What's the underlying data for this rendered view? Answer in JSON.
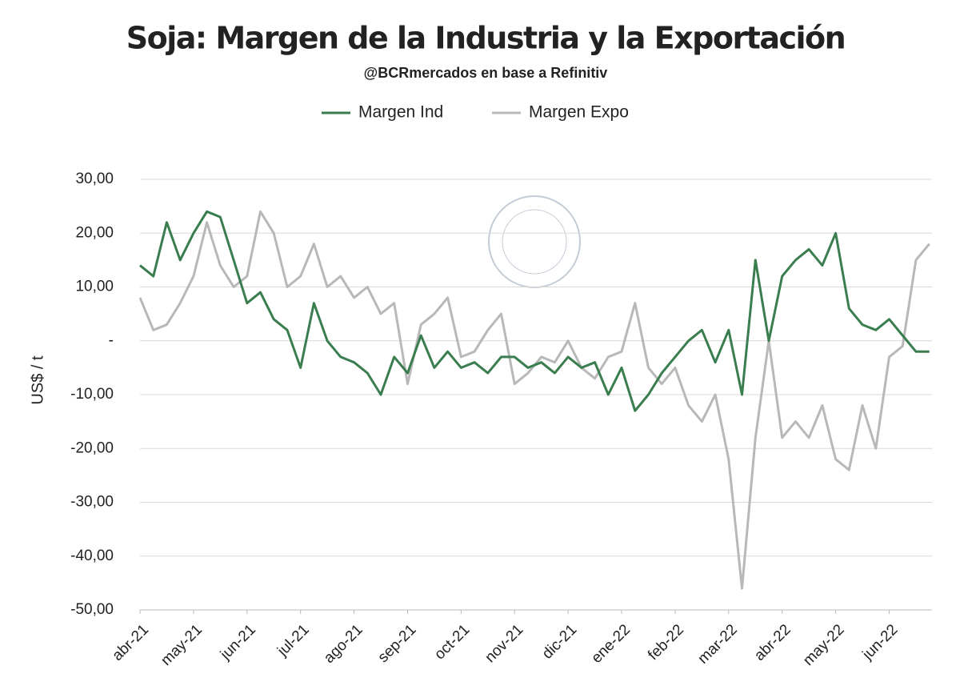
{
  "chart_data": {
    "type": "line",
    "title": "Soja: Margen de la Industria y la Exportación",
    "subtitle": "@BCRmercados  en base a Refinitiv",
    "y_label": "US$ / t",
    "x": [
      0,
      0.25,
      0.5,
      0.75,
      1,
      1.25,
      1.5,
      1.75,
      2,
      2.25,
      2.5,
      2.75,
      3,
      3.25,
      3.5,
      3.75,
      4,
      4.25,
      4.5,
      4.75,
      5,
      5.25,
      5.5,
      5.75,
      6,
      6.25,
      6.5,
      6.75,
      7,
      7.25,
      7.5,
      7.75,
      8,
      8.25,
      8.5,
      8.75,
      9,
      9.25,
      9.5,
      9.75,
      10,
      10.25,
      10.5,
      10.75,
      11,
      11.25,
      11.5,
      11.75,
      12,
      12.25,
      12.5,
      12.75,
      13,
      13.25,
      13.5,
      13.75,
      14,
      14.25,
      14.5,
      14.75
    ],
    "series": [
      {
        "name": "Margen Ind",
        "color": "#3a7d4f",
        "values": [
          14,
          12,
          22,
          15,
          20,
          24,
          23,
          15,
          7,
          9,
          4,
          2,
          -5,
          7,
          0,
          -3,
          -4,
          -6,
          -10,
          -3,
          -6,
          1,
          -5,
          -2,
          -5,
          -4,
          -6,
          -3,
          -3,
          -5,
          -4,
          -6,
          -3,
          -5,
          -4,
          -10,
          -5,
          -13,
          -10,
          -6,
          -3,
          0,
          2,
          -4,
          2,
          -10,
          15,
          0,
          12,
          15,
          17,
          14,
          20,
          6,
          3,
          2,
          4,
          1,
          -2,
          -2
        ]
      },
      {
        "name": "Margen Expo",
        "color": "#b8b8b8",
        "values": [
          8,
          2,
          3,
          7,
          12,
          22,
          14,
          10,
          12,
          24,
          20,
          10,
          12,
          18,
          10,
          12,
          8,
          10,
          5,
          7,
          -8,
          3,
          5,
          8,
          -3,
          -2,
          2,
          5,
          -8,
          -6,
          -3,
          -4,
          0,
          -5,
          -7,
          -3,
          -2,
          7,
          -5,
          -8,
          -5,
          -12,
          -15,
          -10,
          -22,
          -46,
          -18,
          0,
          -18,
          -15,
          -18,
          -12,
          -22,
          -24,
          -12,
          -20,
          -3,
          -1,
          15,
          18
        ]
      }
    ],
    "xlim": [
      0,
      14.8
    ],
    "xticks": [
      {
        "value": 0,
        "label": "abr-21"
      },
      {
        "value": 1,
        "label": "may-21"
      },
      {
        "value": 2,
        "label": "jun-21"
      },
      {
        "value": 3,
        "label": "jul-21"
      },
      {
        "value": 4,
        "label": "ago-21"
      },
      {
        "value": 5,
        "label": "sep-21"
      },
      {
        "value": 6,
        "label": "oct-21"
      },
      {
        "value": 7,
        "label": "nov-21"
      },
      {
        "value": 8,
        "label": "dic-21"
      },
      {
        "value": 9,
        "label": "ene-22"
      },
      {
        "value": 10,
        "label": "feb-22"
      },
      {
        "value": 11,
        "label": "mar-22"
      },
      {
        "value": 12,
        "label": "abr-22"
      },
      {
        "value": 13,
        "label": "may-22"
      },
      {
        "value": 14,
        "label": "jun-22"
      }
    ],
    "ylim": [
      -50,
      30
    ],
    "yticks": [
      {
        "value": -50,
        "label": "-50,00"
      },
      {
        "value": -40,
        "label": "-40,00"
      },
      {
        "value": -30,
        "label": "-30,00"
      },
      {
        "value": -20,
        "label": "-20,00"
      },
      {
        "value": -10,
        "label": "-10,00"
      },
      {
        "value": 0,
        "label": "-"
      },
      {
        "value": 10,
        "label": "10,00"
      },
      {
        "value": 20,
        "label": "20,00"
      },
      {
        "value": 30,
        "label": "30,00"
      }
    ],
    "grid": true
  }
}
